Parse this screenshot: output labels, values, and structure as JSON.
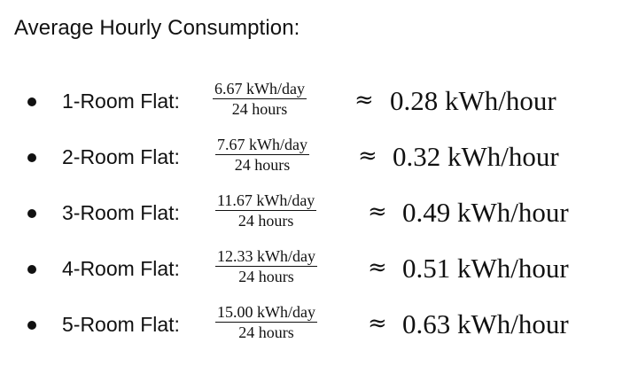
{
  "heading": "Average Hourly Consumption:",
  "items": [
    {
      "label": "1-Room Flat:",
      "numerator": "6.67 kWh/day",
      "denominator": "24 hours",
      "approx": "≈",
      "result": "0.28 kWh/hour"
    },
    {
      "label": "2-Room Flat:",
      "numerator": "7.67 kWh/day",
      "denominator": "24 hours",
      "approx": "≈",
      "result": "0.32 kWh/hour"
    },
    {
      "label": "3-Room Flat:",
      "numerator": "11.67 kWh/day",
      "denominator": "24 hours",
      "approx": "≈",
      "result": "0.49 kWh/hour"
    },
    {
      "label": "4-Room Flat:",
      "numerator": "12.33 kWh/day",
      "denominator": "24 hours",
      "approx": "≈",
      "result": "0.51 kWh/hour"
    },
    {
      "label": "5-Room Flat:",
      "numerator": "15.00 kWh/day",
      "denominator": "24 hours",
      "approx": "≈",
      "result": "0.63 kWh/hour"
    }
  ]
}
